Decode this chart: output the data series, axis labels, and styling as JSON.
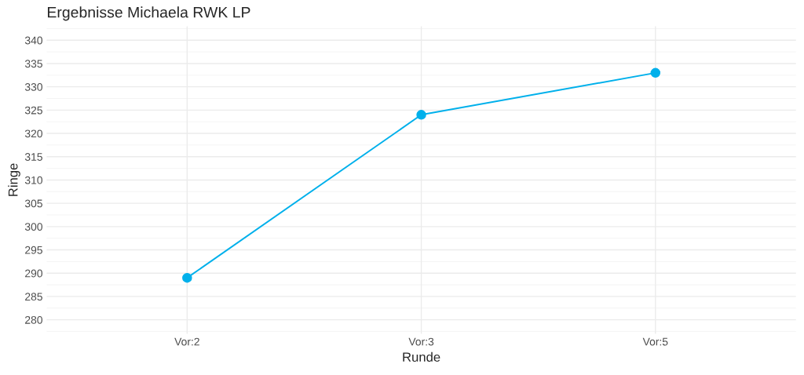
{
  "chart_data": {
    "type": "line",
    "title": "Ergebnisse Michaela RWK LP",
    "xlabel": "Runde",
    "ylabel": "Ringe",
    "categories": [
      "Vor:2",
      "Vor:3",
      "Vor:5"
    ],
    "series": [
      {
        "color": "#00b0eb",
        "values": [
          289,
          324,
          333
        ]
      }
    ],
    "ylim": [
      277,
      343
    ],
    "yticks": [
      280,
      285,
      290,
      295,
      300,
      305,
      310,
      315,
      320,
      325,
      330,
      335,
      340
    ],
    "grid": true,
    "marker": "circle",
    "line_style": "solid"
  }
}
